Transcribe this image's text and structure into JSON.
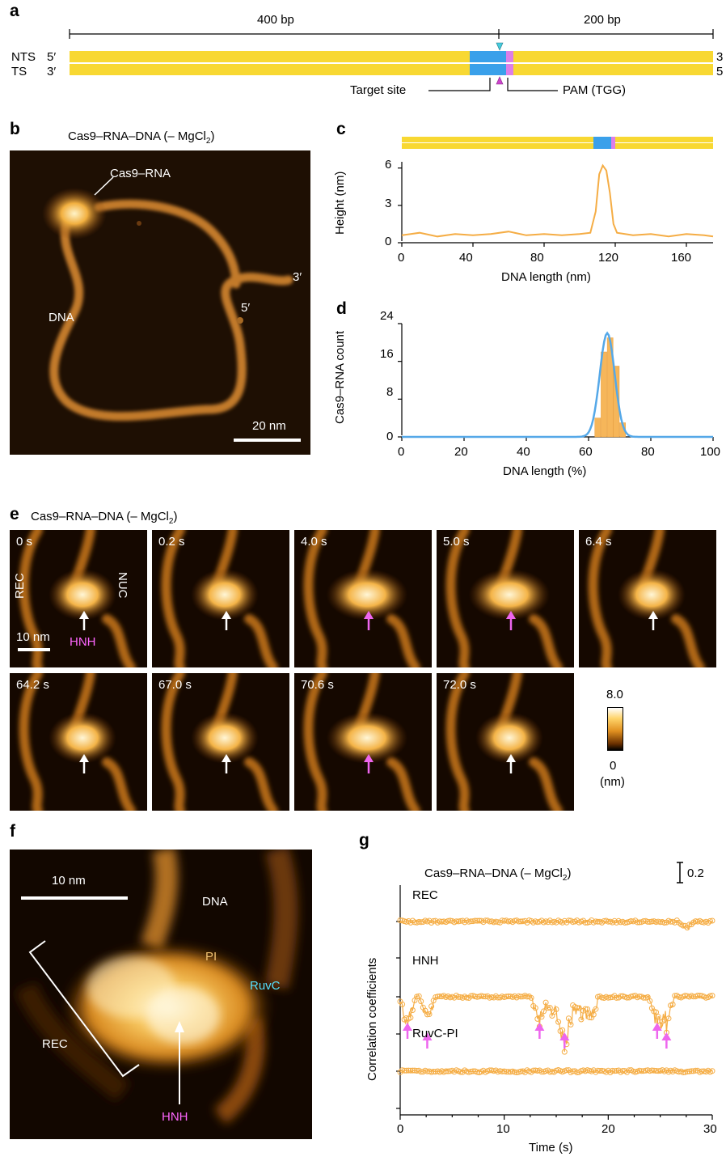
{
  "colors": {
    "dna_yellow": "#f8d832",
    "target_blue": "#3aa0ea",
    "pam_pink": "#dd7ee8",
    "trace_orange": "#f5ad45",
    "gauss_blue": "#55a8e8",
    "magenta_arrow": "#ee66ee",
    "cyan_marker": "#44ccdd",
    "ruvc_cyan": "#55e0ff",
    "pi_label": "#f0c070",
    "hnh_magenta": "#ff66ff"
  },
  "panel_a": {
    "label": "a",
    "len_left": "400 bp",
    "len_right": "200 bp",
    "nts": "NTS",
    "ts": "TS",
    "nts_left_end": "5′",
    "ts_left_end": "3′",
    "nts_right_end": "3",
    "ts_right_end": "5",
    "target_site": "Target site",
    "pam": "PAM (TGG)"
  },
  "panel_b": {
    "label": "b",
    "title_main": "Cas9–RNA–DNA (– MgCl",
    "title_sub": "2",
    "title_end": ")",
    "cas9_rna": "Cas9–RNA",
    "dna": "DNA",
    "end_3": "3′",
    "end_5": "5′",
    "scale": "20 nm"
  },
  "panel_c": {
    "label": "c",
    "ylabel": "Height (nm)",
    "xlabel": "DNA length (nm)",
    "yticks": [
      "0",
      "3",
      "6"
    ],
    "xticks": [
      "0",
      "40",
      "80",
      "120",
      "160"
    ]
  },
  "panel_d": {
    "label": "d",
    "ylabel": "Cas9–RNA count",
    "xlabel": "DNA length (%)",
    "yticks": [
      "0",
      "8",
      "16",
      "24"
    ],
    "xticks": [
      "0",
      "20",
      "40",
      "60",
      "80",
      "100"
    ]
  },
  "panel_e": {
    "label": "e",
    "title_main": "Cas9–RNA–DNA (– MgCl",
    "title_sub": "2",
    "title_end": ")",
    "frames_row1": [
      "0 s",
      "0.2 s",
      "4.0 s",
      "5.0 s",
      "6.4 s"
    ],
    "frames_row2": [
      "64.2 s",
      "67.0 s",
      "70.6 s",
      "72.0 s"
    ],
    "rec": "REC",
    "nuc": "NUC",
    "hnh": "HNH",
    "scale": "10 nm",
    "colorbar_max": "8.0",
    "colorbar_min": "0",
    "colorbar_unit": "(nm)"
  },
  "panel_f": {
    "label": "f",
    "scale": "10 nm",
    "dna": "DNA",
    "pi": "PI",
    "ruvc": "RuvC",
    "rec": "REC",
    "hnh": "HNH"
  },
  "panel_g": {
    "label": "g",
    "title_main": "Cas9–RNA–DNA (– MgCl",
    "title_sub": "2",
    "title_end": ")",
    "scale_bar": "0.2",
    "ylabel": "Correlation coefficients",
    "xlabel": "Time (s)",
    "xticks": [
      "0",
      "10",
      "20",
      "30"
    ],
    "traces": [
      "REC",
      "HNH",
      "RuvC-PI"
    ]
  },
  "chart_data": [
    {
      "type": "line",
      "panel": "c",
      "xlabel": "DNA length (nm)",
      "ylabel": "Height (nm)",
      "xlim": [
        0,
        175
      ],
      "ylim": [
        0,
        6.5
      ],
      "series": [
        {
          "x": [
            0,
            10,
            20,
            30,
            40,
            50,
            60,
            70,
            80,
            90,
            100,
            106,
            109,
            111,
            113,
            115,
            117,
            119,
            121,
            130,
            140,
            150,
            160,
            170,
            175
          ],
          "values": [
            0.6,
            0.8,
            0.5,
            0.7,
            0.6,
            0.7,
            0.9,
            0.6,
            0.7,
            0.6,
            0.7,
            0.8,
            2.5,
            5.5,
            6.2,
            5.8,
            4.0,
            1.5,
            0.8,
            0.6,
            0.7,
            0.5,
            0.7,
            0.6,
            0.5
          ]
        }
      ]
    },
    {
      "type": "bar",
      "panel": "d",
      "xlabel": "DNA length (%)",
      "ylabel": "Cas9–RNA count",
      "xlim": [
        0,
        100
      ],
      "ylim": [
        0,
        24
      ],
      "categories": [
        63,
        65,
        67,
        69,
        71
      ],
      "values": [
        4,
        18,
        21,
        15,
        3
      ],
      "fit": {
        "type": "gaussian",
        "mean": 66,
        "sd": 2.4,
        "peak": 22
      }
    },
    {
      "type": "scatter",
      "panel": "g",
      "xlabel": "Time (s)",
      "ylabel": "Correlation coefficients",
      "xlim": [
        0,
        30
      ],
      "series": [
        {
          "name": "REC",
          "dips_time_s": [
            27.5
          ]
        },
        {
          "name": "HNH",
          "dips_time_s": [
            0.7,
            2.6,
            13.4,
            15.8,
            24.7,
            25.6
          ]
        },
        {
          "name": "RuvC-PI",
          "dips_time_s": []
        }
      ]
    }
  ]
}
